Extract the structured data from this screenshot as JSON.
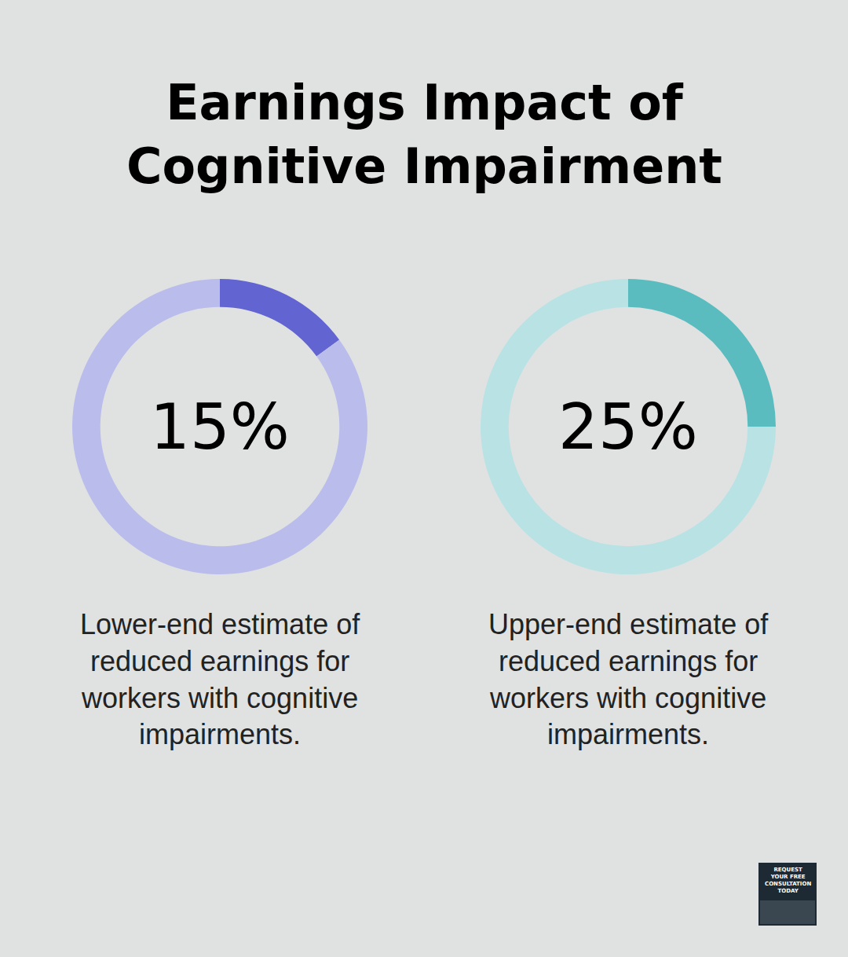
{
  "title": "Earnings Impact of Cognitive Impairment",
  "chart_data": [
    {
      "type": "pie",
      "values": [
        15,
        85
      ],
      "colors": [
        "#6264d2",
        "#babcec"
      ],
      "label": "15%",
      "caption": "Lower-end estimate of reduced earnings for workers with cognitive impairments."
    },
    {
      "type": "pie",
      "values": [
        25,
        75
      ],
      "colors": [
        "#5bbcbf",
        "#b8e2e4"
      ],
      "label": "25%",
      "caption": "Upper-end estimate of reduced earnings for workers with cognitive impairments."
    }
  ],
  "badge": "REQUEST YOUR FREE CONSULTATION TODAY"
}
